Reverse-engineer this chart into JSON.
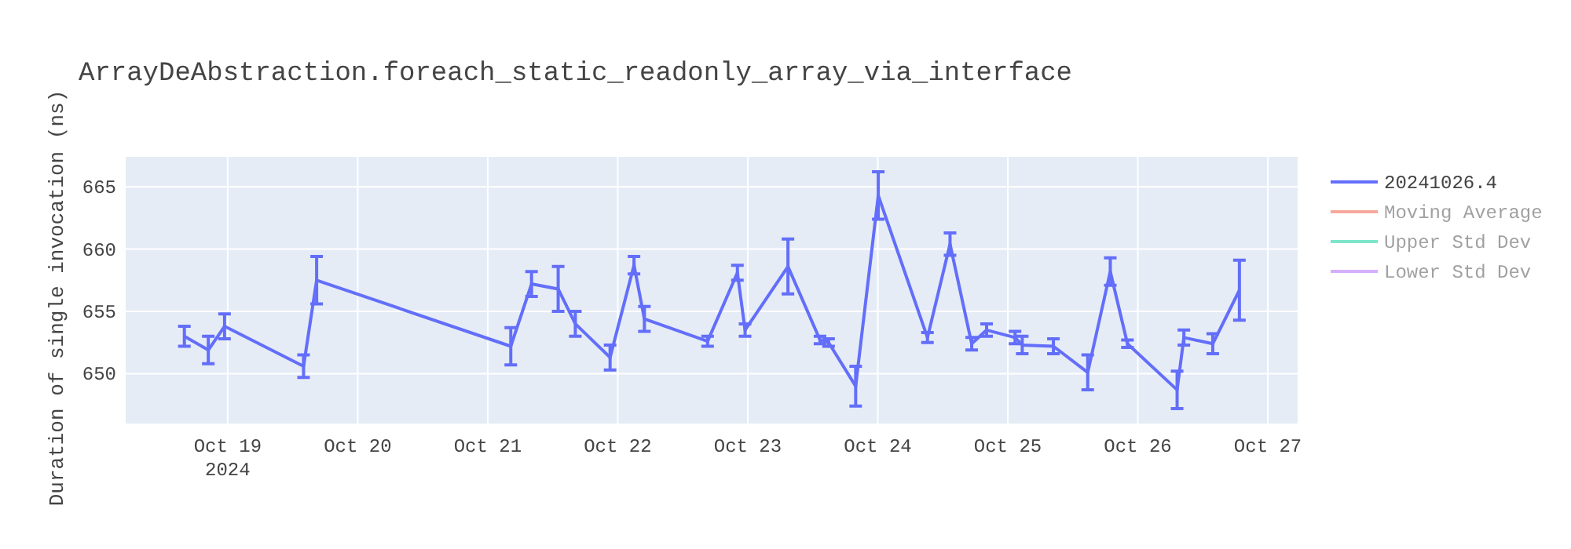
{
  "chart_data": {
    "type": "line",
    "title": "ArrayDeAbstraction.foreach_static_readonly_array_via_interface",
    "ylabel": "Duration of single invocation (ns)",
    "x": [
      "2024-10-18T16:00",
      "2024-10-18T20:25",
      "2024-10-18T23:25",
      "2024-10-19T14:00",
      "2024-10-19T16:25",
      "2024-10-21T04:15",
      "2024-10-21T08:05",
      "2024-10-21T13:00",
      "2024-10-21T16:10",
      "2024-10-21T22:35",
      "2024-10-22T03:00",
      "2024-10-22T04:55",
      "2024-10-22T16:35",
      "2024-10-22T22:05",
      "2024-10-22T23:30",
      "2024-10-23T07:25",
      "2024-10-23T13:20",
      "2024-10-23T14:55",
      "2024-10-23T19:55",
      "2024-10-24T00:05",
      "2024-10-24T09:10",
      "2024-10-24T13:20",
      "2024-10-24T17:20",
      "2024-10-24T20:05",
      "2024-10-25T01:20",
      "2024-10-25T02:40",
      "2024-10-25T08:25",
      "2024-10-25T14:45",
      "2024-10-25T18:55",
      "2024-10-25T22:05",
      "2024-10-26T07:15",
      "2024-10-26T08:30",
      "2024-10-26T13:50",
      "2024-10-26T18:45"
    ],
    "series": [
      {
        "name": "20241026.4",
        "color": "#636efa",
        "values": [
          653.0,
          651.9,
          653.8,
          650.6,
          657.5,
          652.2,
          657.2,
          656.8,
          654.0,
          651.3,
          658.7,
          654.4,
          652.6,
          658.1,
          653.5,
          658.6,
          652.7,
          652.5,
          649.0,
          664.3,
          652.9,
          660.4,
          652.4,
          653.5,
          652.9,
          652.3,
          652.2,
          650.1,
          658.2,
          652.4,
          648.7,
          652.9,
          652.4,
          656.7
        ],
        "errors": [
          0.8,
          1.1,
          1.0,
          0.9,
          1.9,
          1.5,
          1.0,
          1.8,
          1.0,
          1.0,
          0.7,
          1.0,
          0.4,
          0.6,
          0.5,
          2.2,
          0.3,
          0.3,
          1.6,
          1.9,
          0.4,
          0.9,
          0.5,
          0.5,
          0.5,
          0.7,
          0.6,
          1.4,
          1.1,
          0.3,
          1.5,
          0.6,
          0.8,
          2.4
        ]
      },
      {
        "name": "Moving Average",
        "color": "#ef553b",
        "values": [
          null,
          null,
          null,
          null,
          null,
          null,
          null,
          null,
          null,
          null,
          null,
          null,
          null,
          null,
          null,
          null,
          null,
          null,
          null,
          null,
          null,
          null,
          null,
          null,
          null,
          null,
          null,
          null,
          null,
          null,
          null,
          null,
          null,
          null
        ]
      },
      {
        "name": "Upper Std Dev",
        "color": "#00cc96",
        "values": [
          null,
          null,
          null,
          null,
          null,
          null,
          null,
          null,
          null,
          null,
          null,
          null,
          null,
          null,
          null,
          null,
          null,
          null,
          null,
          null,
          null,
          null,
          null,
          null,
          null,
          null,
          null,
          null,
          null,
          null,
          null,
          null,
          null,
          null
        ]
      },
      {
        "name": "Lower Std Dev",
        "color": "#ab63fa",
        "values": [
          null,
          null,
          null,
          null,
          null,
          null,
          null,
          null,
          null,
          null,
          null,
          null,
          null,
          null,
          null,
          null,
          null,
          null,
          null,
          null,
          null,
          null,
          null,
          null,
          null,
          null,
          null,
          null,
          null,
          null,
          null,
          null,
          null,
          null
        ]
      }
    ],
    "xlim": [
      "2024-10-18T05:10",
      "2024-10-27T05:30"
    ],
    "xticks": [
      {
        "value": "2024-10-19",
        "label": "Oct 19\n2024"
      },
      {
        "value": "2024-10-20",
        "label": "Oct 20"
      },
      {
        "value": "2024-10-21",
        "label": "Oct 21"
      },
      {
        "value": "2024-10-22",
        "label": "Oct 22"
      },
      {
        "value": "2024-10-23",
        "label": "Oct 23"
      },
      {
        "value": "2024-10-24",
        "label": "Oct 24"
      },
      {
        "value": "2024-10-25",
        "label": "Oct 25"
      },
      {
        "value": "2024-10-26",
        "label": "Oct 26"
      },
      {
        "value": "2024-10-27",
        "label": "Oct 27"
      }
    ],
    "ylim": [
      646,
      667.4
    ],
    "yticks": [
      650,
      655,
      660,
      665
    ],
    "grid": true,
    "legend": "right",
    "marker": "none",
    "line_style": "solid"
  }
}
